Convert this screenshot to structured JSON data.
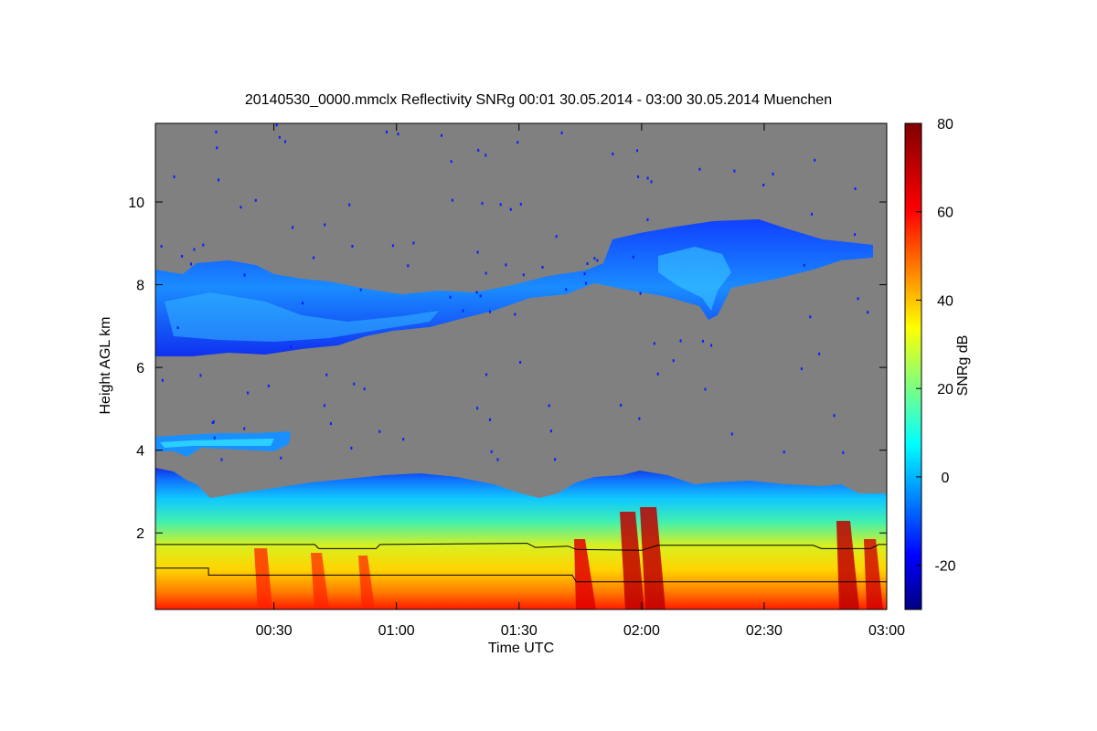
{
  "chart_data": {
    "type": "heatmap",
    "title": "20140530_0000.mmclx Reflectivity SNRg   00:01 30.05.2014 - 03:00 30.05.2014 Muenchen",
    "xlabel": "Time UTC",
    "ylabel": "Height AGL km",
    "colorbar_label": "SNRg dB",
    "xlim_minutes_utc": [
      1,
      180
    ],
    "ylim_km": [
      0.15,
      11.9
    ],
    "clim_db": [
      -30,
      80
    ],
    "x_ticks": [
      {
        "minute": 30,
        "label": "00:30"
      },
      {
        "minute": 60,
        "label": "01:00"
      },
      {
        "minute": 90,
        "label": "01:30"
      },
      {
        "minute": 120,
        "label": "02:00"
      },
      {
        "minute": 150,
        "label": "02:30"
      },
      {
        "minute": 180,
        "label": "03:00"
      }
    ],
    "y_ticks": [
      {
        "value": 2,
        "label": "2"
      },
      {
        "value": 4,
        "label": "4"
      },
      {
        "value": 6,
        "label": "6"
      },
      {
        "value": 8,
        "label": "8"
      },
      {
        "value": 10,
        "label": "10"
      }
    ],
    "colorbar_ticks": [
      {
        "value": -20,
        "label": "-20"
      },
      {
        "value": 0,
        "label": "0"
      },
      {
        "value": 20,
        "label": "20"
      },
      {
        "value": 40,
        "label": "40"
      },
      {
        "value": 60,
        "label": "60"
      },
      {
        "value": 80,
        "label": "80"
      }
    ],
    "colormap": "jet",
    "no_signal_color": "#808080",
    "overlays": [
      {
        "type": "line",
        "color": "#000000",
        "points_minute_km": [
          [
            1,
            1.72
          ],
          [
            40,
            1.72
          ],
          [
            41,
            1.62
          ],
          [
            55,
            1.62
          ],
          [
            56,
            1.72
          ],
          [
            92,
            1.75
          ],
          [
            94,
            1.65
          ],
          [
            102,
            1.68
          ],
          [
            104,
            1.6
          ],
          [
            120,
            1.58
          ],
          [
            124,
            1.7
          ],
          [
            162,
            1.7
          ],
          [
            164,
            1.62
          ],
          [
            176,
            1.62
          ],
          [
            178,
            1.72
          ],
          [
            180,
            1.72
          ]
        ]
      },
      {
        "type": "line",
        "color": "#000000",
        "points_minute_km": [
          [
            1,
            1.15
          ],
          [
            14,
            1.15
          ],
          [
            14,
            0.98
          ],
          [
            103,
            0.98
          ],
          [
            104,
            0.82
          ],
          [
            180,
            0.82
          ]
        ]
      }
    ]
  }
}
